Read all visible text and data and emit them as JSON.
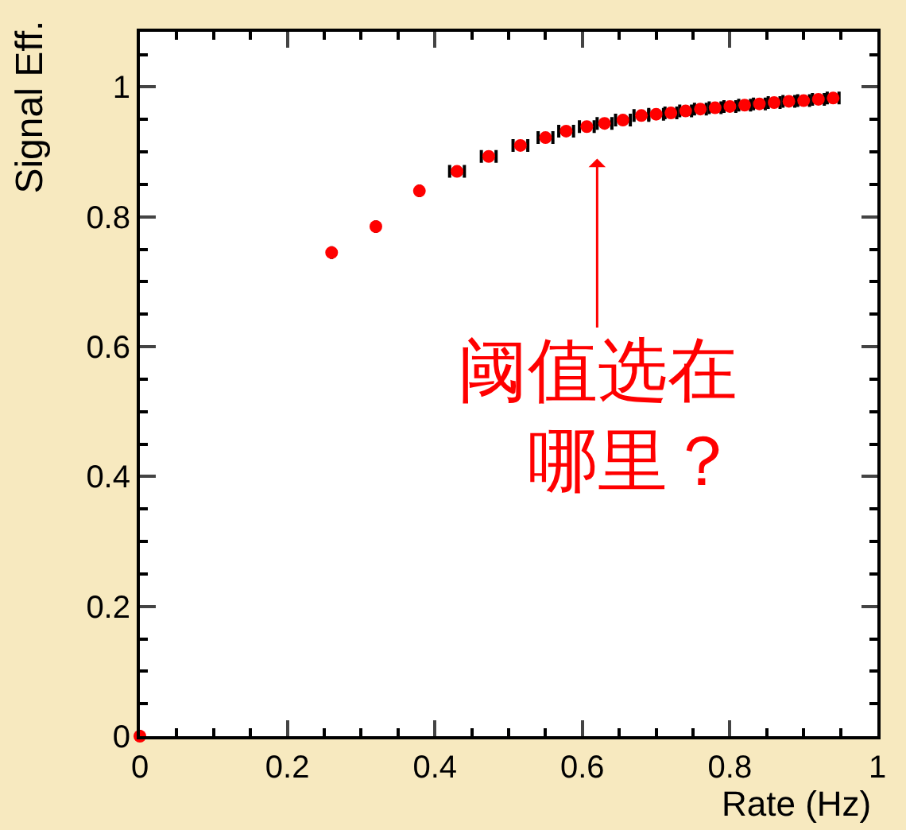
{
  "chart_data": {
    "type": "scatter",
    "xlabel": "Rate (Hz)",
    "ylabel": "Signal Eff.",
    "x": [
      0,
      0.26,
      0.32,
      0.379,
      0.43,
      0.473,
      0.516,
      0.55,
      0.578,
      0.606,
      0.63,
      0.655,
      0.68,
      0.7,
      0.72,
      0.74,
      0.76,
      0.78,
      0.8,
      0.82,
      0.84,
      0.86,
      0.88,
      0.9,
      0.92,
      0.94
    ],
    "series": [
      {
        "color": "#ff0000",
        "values": [
          0,
          0.745,
          0.785,
          0.84,
          0.87,
          0.893,
          0.91,
          0.922,
          0.932,
          0.939,
          0.944,
          0.949,
          0.956,
          0.958,
          0.96,
          0.963,
          0.966,
          0.968,
          0.97,
          0.972,
          0.974,
          0.976,
          0.978,
          0.979,
          0.981,
          0.983
        ],
        "xerrors": [
          null,
          null,
          null,
          null,
          0.01,
          0.01,
          0.01,
          0.01,
          0.01,
          0.01,
          0.01,
          0.01,
          0.01,
          0.01,
          0.008,
          0.008,
          0.008,
          0.008,
          0.008,
          0.008,
          0.008,
          0.008,
          0.008,
          0.008,
          0.008,
          0.008
        ]
      }
    ],
    "marker": "circle",
    "xlim": [
      0,
      1.0
    ],
    "ylim": [
      0,
      1.085
    ],
    "xticks": [
      0,
      0.2,
      0.4,
      0.6,
      0.8,
      1
    ],
    "yticks": [
      0,
      0.2,
      0.4,
      0.6,
      0.8,
      1
    ],
    "annotations": [
      "阈值选在哪里？"
    ]
  }
}
